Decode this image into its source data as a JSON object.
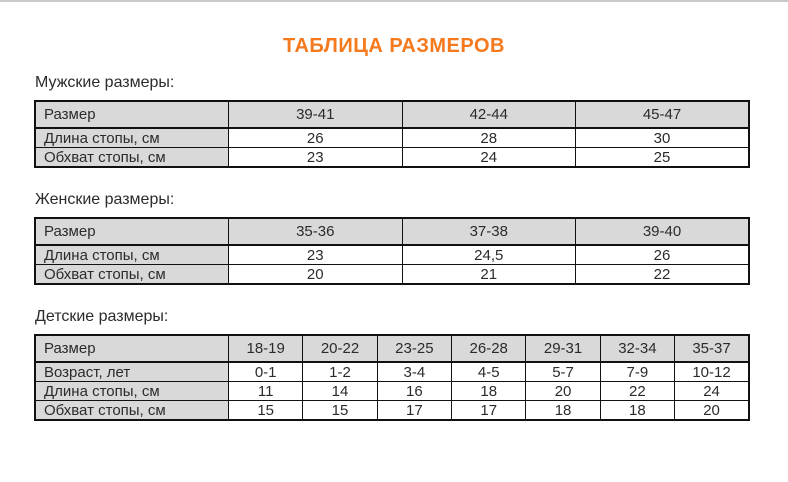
{
  "page": {
    "title": "ТАБЛИЦА РАЗМЕРОВ",
    "accent_color": "#f5791d",
    "header_cell_color": "#d9d9d9",
    "border_color": "#111111",
    "topbar_color": "#c9c9c9"
  },
  "sections": [
    {
      "label": "Мужские размеры:",
      "table": {
        "header": [
          "Размер",
          "39-41",
          "42-44",
          "45-47"
        ],
        "rows": [
          [
            "Длина стопы, см",
            "26",
            "28",
            "30"
          ],
          [
            "Обхват стопы, см",
            "23",
            "24",
            "25"
          ]
        ]
      }
    },
    {
      "label": "Женские размеры:",
      "table": {
        "header": [
          "Размер",
          "35-36",
          "37-38",
          "39-40"
        ],
        "rows": [
          [
            "Длина стопы, см",
            "23",
            "24,5",
            "26"
          ],
          [
            "Обхват стопы, см",
            "20",
            "21",
            "22"
          ]
        ]
      }
    },
    {
      "label": "Детские размеры:",
      "table": {
        "header": [
          "Размер",
          "18-19",
          "20-22",
          "23-25",
          "26-28",
          "29-31",
          "32-34",
          "35-37"
        ],
        "rows": [
          [
            "Возраст, лет",
            "0-1",
            "1-2",
            "3-4",
            "4-5",
            "5-7",
            "7-9",
            "10-12"
          ],
          [
            "Длина стопы, см",
            "11",
            "14",
            "16",
            "18",
            "20",
            "22",
            "24"
          ],
          [
            "Обхват стопы, см",
            "15",
            "15",
            "17",
            "17",
            "18",
            "18",
            "20"
          ]
        ]
      }
    }
  ]
}
